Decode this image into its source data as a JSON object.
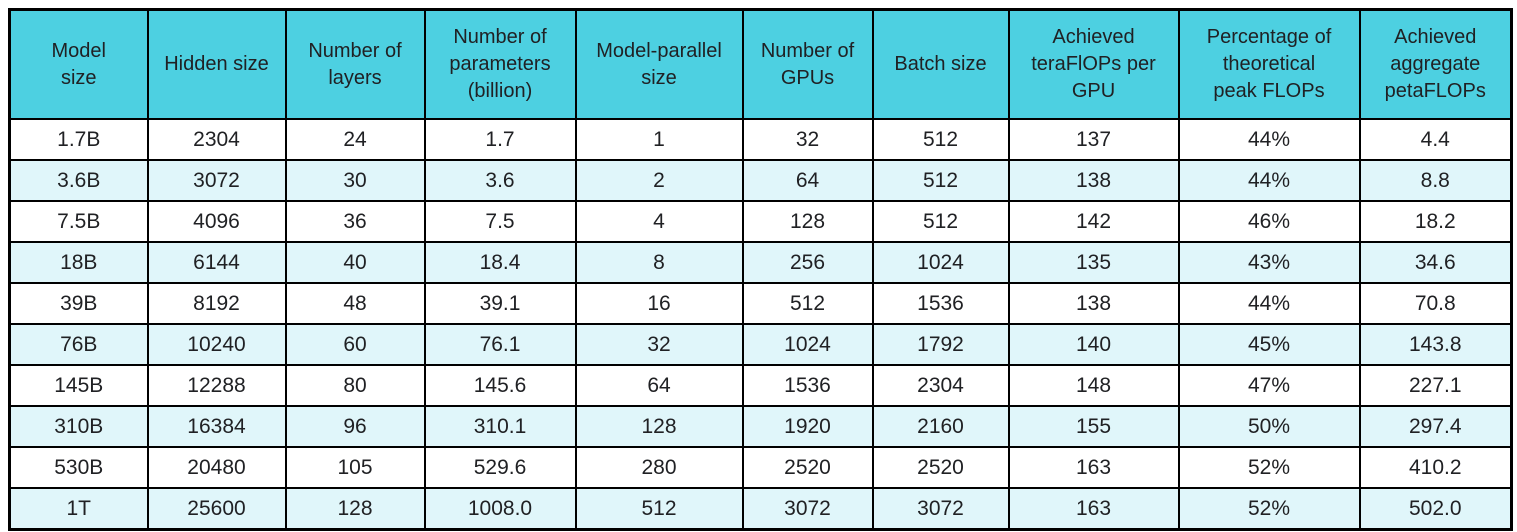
{
  "table": {
    "columns": [
      "Model\nsize",
      "Hidden size",
      "Number of\nlayers",
      "Number of\nparameters\n(billion)",
      "Model-parallel\nsize",
      "Number of\nGPUs",
      "Batch size",
      "Achieved\nteraFlOPs per\nGPU",
      "Percentage of\ntheoretical\npeak FLOPs",
      "Achieved\naggregate\npetaFLOPs"
    ],
    "rows": [
      [
        "1.7B",
        "2304",
        "24",
        "1.7",
        "1",
        "32",
        "512",
        "137",
        "44%",
        "4.4"
      ],
      [
        "3.6B",
        "3072",
        "30",
        "3.6",
        "2",
        "64",
        "512",
        "138",
        "44%",
        "8.8"
      ],
      [
        "7.5B",
        "4096",
        "36",
        "7.5",
        "4",
        "128",
        "512",
        "142",
        "46%",
        "18.2"
      ],
      [
        "18B",
        "6144",
        "40",
        "18.4",
        "8",
        "256",
        "1024",
        "135",
        "43%",
        "34.6"
      ],
      [
        "39B",
        "8192",
        "48",
        "39.1",
        "16",
        "512",
        "1536",
        "138",
        "44%",
        "70.8"
      ],
      [
        "76B",
        "10240",
        "60",
        "76.1",
        "32",
        "1024",
        "1792",
        "140",
        "45%",
        "143.8"
      ],
      [
        "145B",
        "12288",
        "80",
        "145.6",
        "64",
        "1536",
        "2304",
        "148",
        "47%",
        "227.1"
      ],
      [
        "310B",
        "16384",
        "96",
        "310.1",
        "128",
        "1920",
        "2160",
        "155",
        "50%",
        "297.4"
      ],
      [
        "530B",
        "20480",
        "105",
        "529.6",
        "280",
        "2520",
        "2520",
        "163",
        "52%",
        "410.2"
      ],
      [
        "1T",
        "25600",
        "128",
        "1008.0",
        "512",
        "3072",
        "3072",
        "163",
        "52%",
        "502.0"
      ]
    ],
    "colors": {
      "header_bg": "#4DD0E1",
      "stripe_bg": "#E0F6FA",
      "row_bg": "#FFFFFF",
      "border": "#000000",
      "text": "#202124"
    }
  }
}
